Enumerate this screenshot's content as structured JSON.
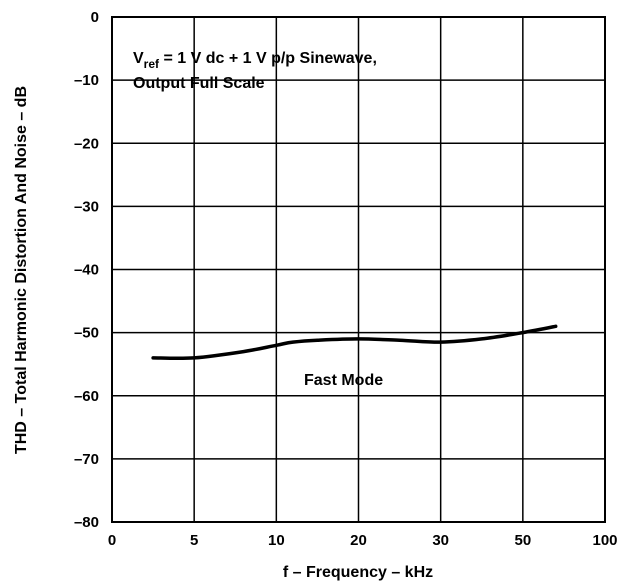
{
  "chart_data": {
    "type": "line",
    "xlabel": "f – Frequency – kHz",
    "ylabel": "THD – Total Harmonic Distortion And Noise – dB",
    "x_tick_labels": [
      "0",
      "5",
      "10",
      "20",
      "30",
      "50",
      "100"
    ],
    "y_ticks": [
      0,
      -10,
      -20,
      -30,
      -40,
      -50,
      -60,
      -70,
      -80
    ],
    "y_tick_labels": [
      "0",
      "–10",
      "–20",
      "–30",
      "–40",
      "–50",
      "–60",
      "–70",
      "–80"
    ],
    "ylim": [
      -80,
      0
    ],
    "grid": true,
    "annotations": {
      "vref_main": "V",
      "vref_sub": "ref",
      "vref_rest": " = 1 V dc + 1 V p/p Sinewave,",
      "line2": "Output Full Scale"
    },
    "series": [
      {
        "name": "Fast Mode",
        "x_kHz": [
          2.5,
          5,
          8,
          10,
          12,
          15,
          20,
          25,
          30,
          40,
          50,
          70
        ],
        "y_dB": [
          -54,
          -54,
          -53,
          -52,
          -51.5,
          -51.2,
          -51,
          -51.2,
          -51.5,
          -51,
          -50,
          -49
        ]
      }
    ]
  }
}
